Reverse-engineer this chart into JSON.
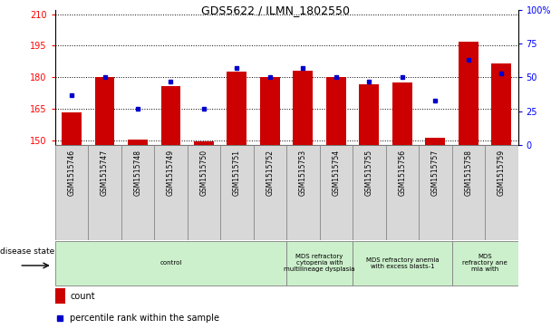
{
  "title": "GDS5622 / ILMN_1802550",
  "samples": [
    "GSM1515746",
    "GSM1515747",
    "GSM1515748",
    "GSM1515749",
    "GSM1515750",
    "GSM1515751",
    "GSM1515752",
    "GSM1515753",
    "GSM1515754",
    "GSM1515755",
    "GSM1515756",
    "GSM1515757",
    "GSM1515758",
    "GSM1515759"
  ],
  "counts": [
    163.5,
    180.0,
    150.5,
    176.0,
    149.5,
    182.5,
    180.0,
    183.0,
    180.0,
    176.5,
    177.5,
    151.5,
    197.0,
    186.5
  ],
  "percentiles": [
    37,
    50,
    27,
    47,
    27,
    57,
    50,
    57,
    50,
    47,
    50,
    33,
    63,
    53
  ],
  "ylim_left": [
    148,
    212
  ],
  "yticks_left": [
    150,
    165,
    180,
    195,
    210
  ],
  "ylim_right": [
    0,
    100
  ],
  "yticks_right": [
    0,
    25,
    50,
    75,
    100
  ],
  "bar_color": "#cc0000",
  "dot_color": "#0000cc",
  "bar_bottom": 148,
  "group_boundaries": [
    {
      "label": "control",
      "start": 0,
      "end": 7
    },
    {
      "label": "MDS refractory\ncytopenia with\nmultilineage dysplasia",
      "start": 7,
      "end": 9
    },
    {
      "label": "MDS refractory anemia\nwith excess blasts-1",
      "start": 9,
      "end": 12
    },
    {
      "label": "MDS\nrefractory ane\nmia with",
      "start": 12,
      "end": 14
    }
  ],
  "group_color": "#ccf0cc",
  "label_bg_color": "#d8d8d8",
  "legend_count_color": "#cc0000",
  "legend_dot_color": "#0000cc",
  "background_color": "#ffffff",
  "bar_width": 0.6
}
